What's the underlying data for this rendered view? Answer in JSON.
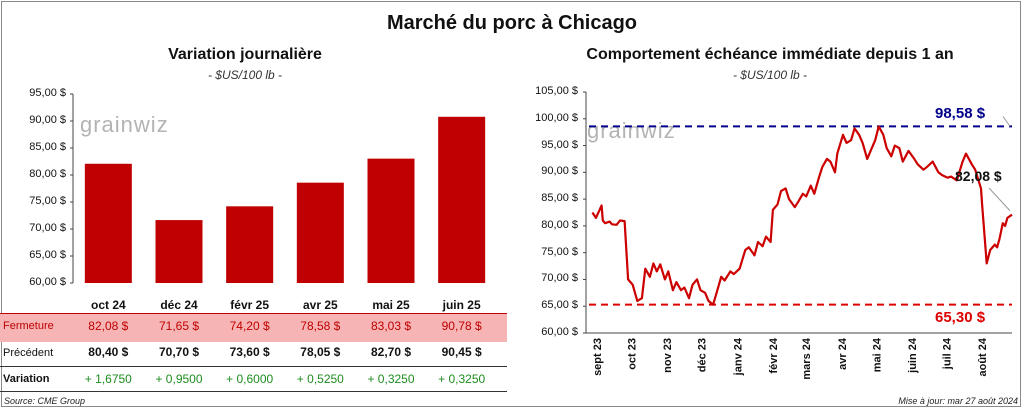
{
  "title": "Marché du porc à Chicago",
  "watermark": "grainwiz",
  "left_panel": {
    "title": "Variation journalière",
    "unit": "- $US/100 lb -",
    "y_ticks": [
      "95,00 $",
      "90,00 $",
      "85,00 $",
      "80,00 $",
      "75,00 $",
      "70,00 $",
      "65,00 $",
      "60,00 $"
    ],
    "rows": [
      {
        "label": "Fermeture",
        "values": [
          "82,08  $",
          "71,65  $",
          "74,20  $",
          "78,58  $",
          "83,03  $",
          "90,78  $"
        ]
      },
      {
        "label": "Précédent",
        "values": [
          "80,40  $",
          "70,70  $",
          "73,60  $",
          "78,05  $",
          "82,70  $",
          "90,45  $"
        ]
      },
      {
        "label": "Variation",
        "values": [
          "+ 1,6750",
          "+ 0,9500",
          "+ 0,6000",
          "+ 0,5250",
          "+ 0,3250",
          "+ 0,3250"
        ]
      }
    ]
  },
  "right_panel": {
    "title": "Comportement  échéance immédiate depuis 1 an",
    "unit": "- $US/100 lb -",
    "y_ticks": [
      "105,00 $",
      "100,00 $",
      "95,00 $",
      "90,00 $",
      "85,00 $",
      "80,00 $",
      "75,00 $",
      "70,00 $",
      "65,00 $",
      "60,00 $"
    ],
    "x_ticks": [
      "sept 23",
      "oct 23",
      "nov 23",
      "déc 23",
      "janv 24",
      "févr 24",
      "mars 24",
      "avr 24",
      "mai 24",
      "juin 24",
      "juil 24",
      "août 24"
    ],
    "high_label": "98,58 $",
    "low_label": "65,30 $",
    "last_label": "82,08 $"
  },
  "footer": {
    "source": "Source: CME Group",
    "updated": "Mise à jour: mar 27 août 2024"
  },
  "colors": {
    "bar": "#c00000",
    "line": "#cc0000",
    "high_line": "#00008b",
    "low_line": "#dd0000",
    "fermeture_bg": "#f6b4b4",
    "variation_text": "#1e8c1e"
  },
  "chart_data": [
    {
      "type": "bar",
      "title": "Variation journalière",
      "categories": [
        "oct 24",
        "déc 24",
        "févr 25",
        "avr 25",
        "mai 25",
        "juin 25"
      ],
      "values": [
        82.08,
        71.65,
        74.2,
        78.58,
        83.03,
        90.78
      ],
      "ylabel": "$US/100 lb",
      "ylim": [
        60,
        95
      ],
      "grid": false
    },
    {
      "type": "line",
      "title": "Comportement  échéance immédiate depuis 1 an",
      "ylabel": "$US/100 lb",
      "ylim": [
        60,
        105
      ],
      "xlim": [
        "2023-08-25",
        "2024-08-27"
      ],
      "grid": false,
      "series": [
        {
          "x": [
            "2023-08-28",
            "2023-08-31",
            "2023-09-05",
            "2023-09-06",
            "2023-09-08",
            "2023-09-12",
            "2023-09-14",
            "2023-09-18",
            "2023-09-21",
            "2023-09-25",
            "2023-09-28",
            "2023-10-02",
            "2023-10-06",
            "2023-10-10",
            "2023-10-13",
            "2023-10-17",
            "2023-10-20",
            "2023-10-23",
            "2023-10-26",
            "2023-10-30",
            "2023-11-02",
            "2023-11-06",
            "2023-11-09",
            "2023-11-13",
            "2023-11-16",
            "2023-11-20",
            "2023-11-23",
            "2023-11-27",
            "2023-11-30",
            "2023-12-04",
            "2023-12-07",
            "2023-12-11",
            "2023-12-14",
            "2023-12-18",
            "2023-12-21",
            "2023-12-26",
            "2023-12-29",
            "2024-01-03",
            "2024-01-08",
            "2024-01-11",
            "2024-01-16",
            "2024-01-19",
            "2024-01-23",
            "2024-01-26",
            "2024-01-30",
            "2024-02-01",
            "2024-02-05",
            "2024-02-08",
            "2024-02-12",
            "2024-02-15",
            "2024-02-20",
            "2024-02-23",
            "2024-02-27",
            "2024-03-01",
            "2024-03-05",
            "2024-03-08",
            "2024-03-12",
            "2024-03-15",
            "2024-03-19",
            "2024-03-22",
            "2024-03-26",
            "2024-03-28",
            "2024-04-02",
            "2024-04-05",
            "2024-04-09",
            "2024-04-12",
            "2024-04-16",
            "2024-04-19",
            "2024-04-23",
            "2024-04-26",
            "2024-04-30",
            "2024-05-03",
            "2024-05-07",
            "2024-05-10",
            "2024-05-14",
            "2024-05-17",
            "2024-05-21",
            "2024-05-24",
            "2024-05-29",
            "2024-06-03",
            "2024-06-06",
            "2024-06-11",
            "2024-06-14",
            "2024-06-19",
            "2024-06-24",
            "2024-06-27",
            "2024-07-02",
            "2024-07-05",
            "2024-07-10",
            "2024-07-15",
            "2024-07-18",
            "2024-07-23",
            "2024-07-26",
            "2024-07-31",
            "2024-08-01",
            "2024-08-05",
            "2024-08-08",
            "2024-08-12",
            "2024-08-14",
            "2024-08-16",
            "2024-08-19",
            "2024-08-21",
            "2024-08-23",
            "2024-08-27"
          ],
          "values": [
            82.5,
            81.5,
            83.8,
            81.0,
            80.5,
            80.8,
            80.3,
            80.2,
            81.0,
            80.9,
            70.0,
            69.0,
            66.0,
            66.5,
            72.0,
            70.5,
            73.0,
            71.5,
            72.8,
            70.0,
            71.5,
            68.0,
            69.5,
            68.0,
            68.5,
            66.5,
            69.0,
            70.0,
            68.0,
            67.5,
            66.0,
            65.3,
            67.5,
            70.5,
            69.8,
            71.5,
            71.0,
            72.0,
            75.5,
            76.0,
            74.5,
            77.0,
            76.2,
            78.0,
            77.0,
            83.0,
            84.0,
            86.5,
            87.0,
            85.0,
            83.5,
            84.5,
            86.0,
            85.5,
            87.5,
            86.0,
            89.0,
            91.0,
            92.5,
            92.0,
            90.0,
            93.5,
            97.0,
            95.5,
            96.0,
            98.2,
            97.0,
            95.5,
            92.5,
            94.0,
            96.0,
            98.58,
            97.0,
            94.5,
            93.0,
            95.0,
            94.5,
            92.0,
            94.0,
            92.5,
            91.5,
            90.5,
            91.0,
            92.0,
            90.0,
            89.5,
            89.0,
            89.2,
            88.5,
            92.0,
            93.5,
            91.5,
            90.5,
            87.0,
            84.0,
            73.0,
            75.5,
            76.5,
            76.0,
            77.5,
            80.5,
            80.0,
            81.5,
            82.08
          ]
        }
      ],
      "annotations": [
        "98,58 $",
        "65,30 $",
        "82,08 $"
      ]
    }
  ]
}
